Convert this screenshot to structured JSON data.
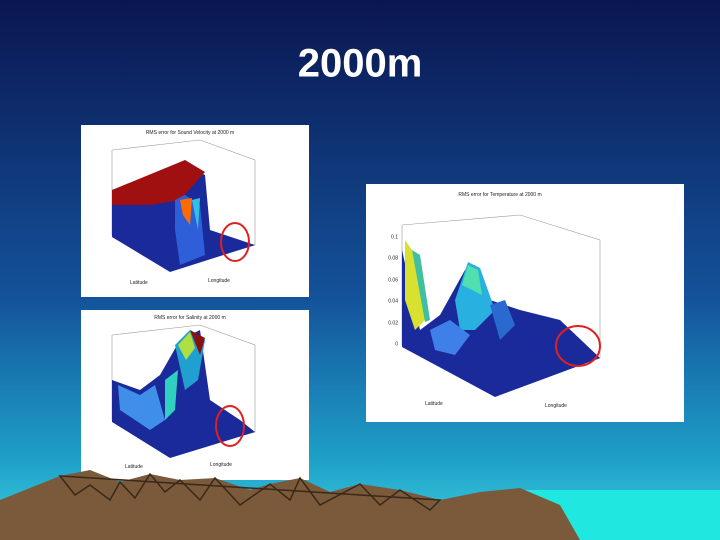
{
  "title": "2000m",
  "figures": [
    {
      "title": "RMS error for Sound Velocity at 2000 m",
      "x_label": "Longitude",
      "y_label": "Latitude"
    },
    {
      "title": "RMS error for Salinity at 2000 m",
      "x_label": "Longitude",
      "y_label": "Latitude"
    },
    {
      "title": "RMS error for Temperature at 2000 m",
      "x_label": "Longitude",
      "y_label": "Latitude",
      "z_ticks": [
        "0.1",
        "0.08",
        "0.06",
        "0.04",
        "0.02",
        "0"
      ]
    }
  ]
}
